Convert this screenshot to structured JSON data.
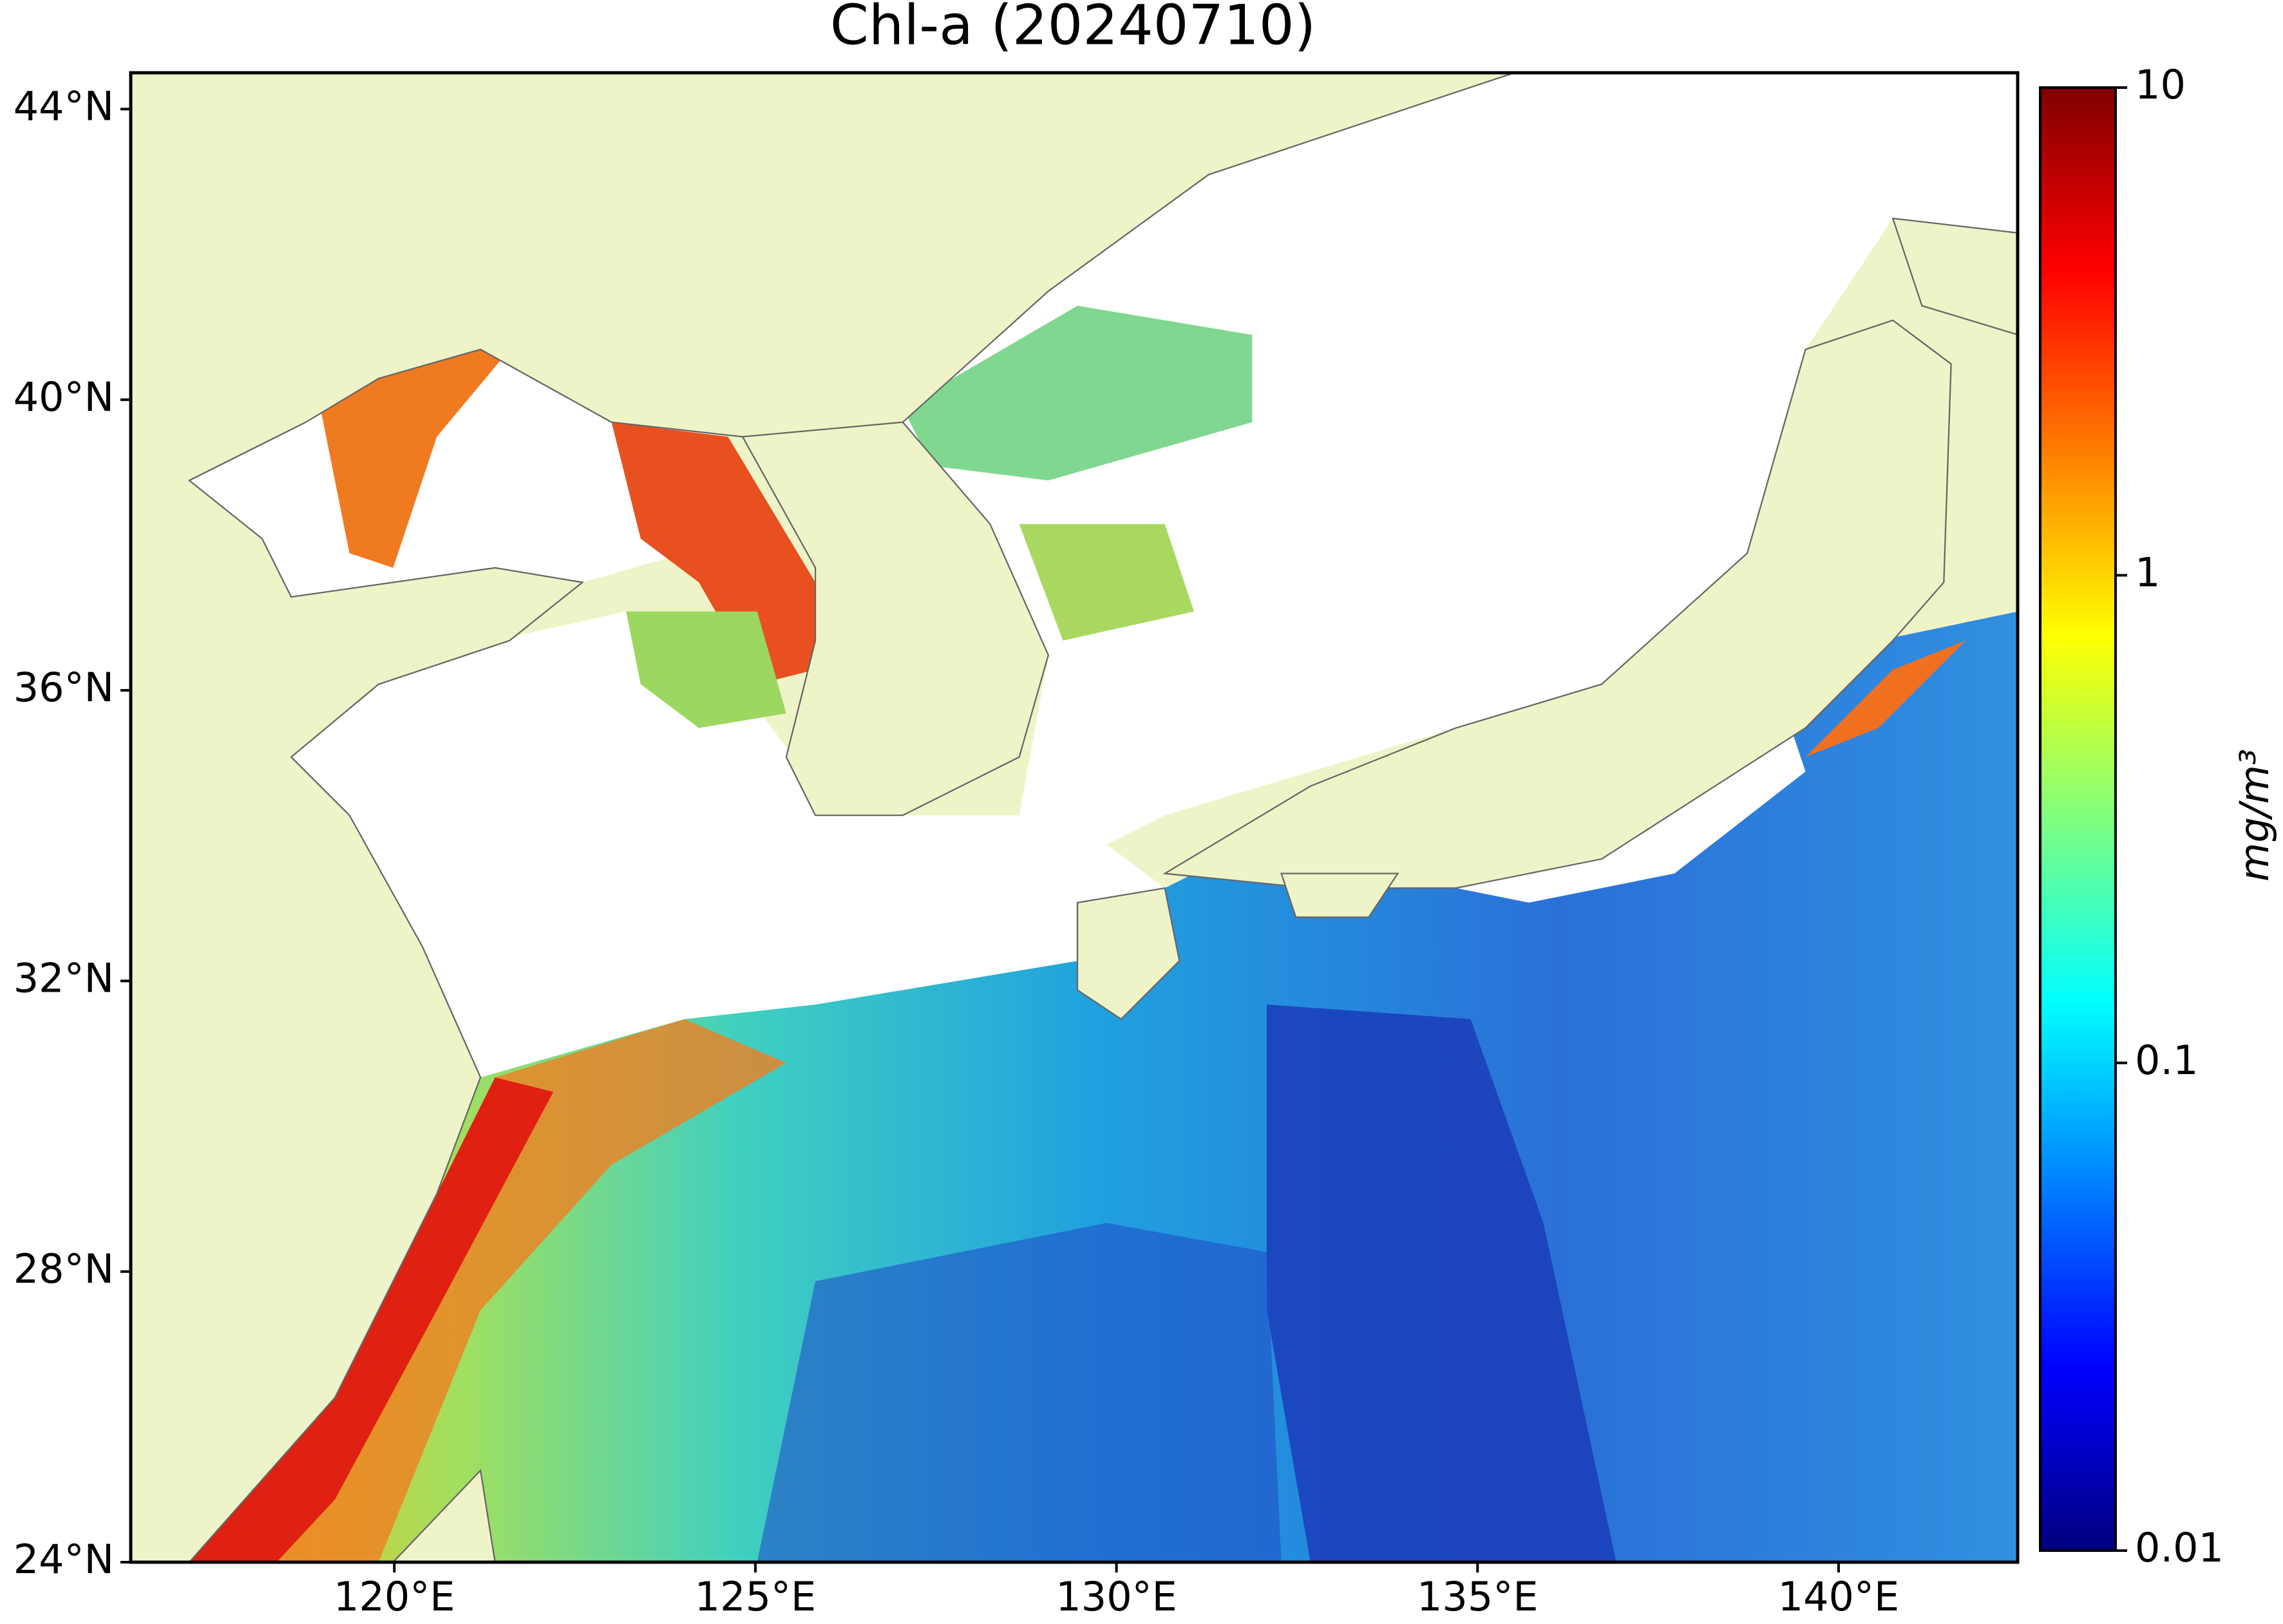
{
  "chart_data": {
    "type": "map",
    "title": "Chl-a (20240710)",
    "xlim": [
      116.35,
      142.48
    ],
    "ylim": [
      24,
      44.5
    ],
    "xticks": [
      {
        "value": 120,
        "label": "120°E"
      },
      {
        "value": 125,
        "label": "125°E"
      },
      {
        "value": 130,
        "label": "130°E"
      },
      {
        "value": 135,
        "label": "135°E"
      },
      {
        "value": 140,
        "label": "140°E"
      }
    ],
    "yticks": [
      {
        "value": 24,
        "label": "24°N"
      },
      {
        "value": 28,
        "label": "28°N"
      },
      {
        "value": 32,
        "label": "32°N"
      },
      {
        "value": 36,
        "label": "36°N"
      },
      {
        "value": 40,
        "label": "40°N"
      },
      {
        "value": 44,
        "label": "44°N"
      }
    ],
    "colorbar": {
      "label": "mg/m³",
      "scale": "log",
      "lim": [
        0.01,
        10
      ],
      "ticks": [
        0.01,
        0.1,
        1,
        10
      ],
      "colormap": "jet"
    }
  }
}
